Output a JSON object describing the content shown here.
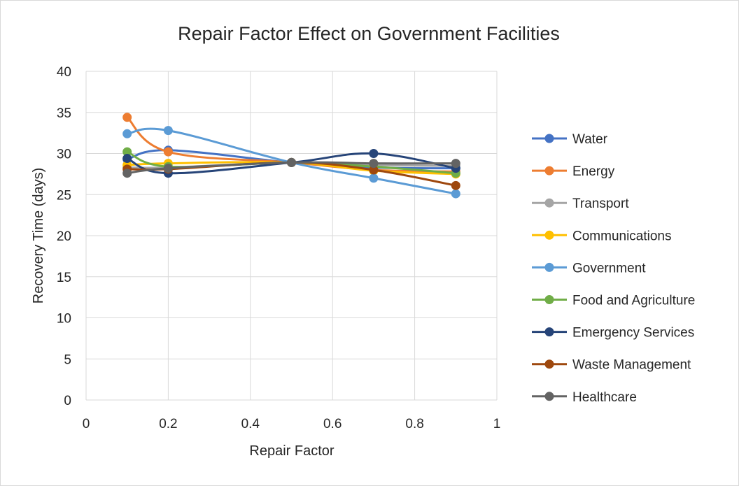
{
  "chart_data": {
    "type": "line",
    "title": "Repair Factor Effect on Government Facilities",
    "xlabel": "Repair Factor",
    "ylabel": "Recovery Time (days)",
    "xlim": [
      0,
      1
    ],
    "ylim": [
      0,
      40
    ],
    "xticks": [
      "0",
      "0.2",
      "0.4",
      "0.6",
      "0.8",
      "1"
    ],
    "yticks": [
      "0",
      "5",
      "10",
      "15",
      "20",
      "25",
      "30",
      "35",
      "40"
    ],
    "grid": true,
    "smooth": true,
    "legend_position": "right",
    "x": [
      0.1,
      0.2,
      0.5,
      0.7,
      0.9
    ],
    "series": [
      {
        "name": "Water",
        "color": "#4472C4",
        "values": [
          29.3,
          30.4,
          28.9,
          28.3,
          28.2
        ]
      },
      {
        "name": "Energy",
        "color": "#ED7D31",
        "values": [
          34.4,
          30.2,
          28.9,
          28.0,
          27.8
        ]
      },
      {
        "name": "Transport",
        "color": "#A5A5A5",
        "values": [
          28.3,
          28.3,
          28.9,
          28.6,
          28.5
        ]
      },
      {
        "name": "Communications",
        "color": "#FFC000",
        "values": [
          28.6,
          28.8,
          28.9,
          27.9,
          27.5
        ]
      },
      {
        "name": "Government",
        "color": "#5B9BD5",
        "values": [
          32.4,
          32.8,
          28.9,
          27.0,
          25.1
        ]
      },
      {
        "name": "Food and Agriculture",
        "color": "#70AD47",
        "values": [
          30.2,
          28.4,
          28.9,
          28.4,
          27.6
        ]
      },
      {
        "name": "Emergency Services",
        "color": "#264478",
        "values": [
          29.4,
          27.6,
          28.9,
          30.0,
          28.2
        ]
      },
      {
        "name": "Waste Management",
        "color": "#9E480E",
        "values": [
          28.1,
          28.1,
          28.9,
          28.0,
          26.1
        ]
      },
      {
        "name": "Healthcare",
        "color": "#636363",
        "values": [
          27.6,
          28.2,
          28.9,
          28.8,
          28.8
        ]
      }
    ]
  }
}
